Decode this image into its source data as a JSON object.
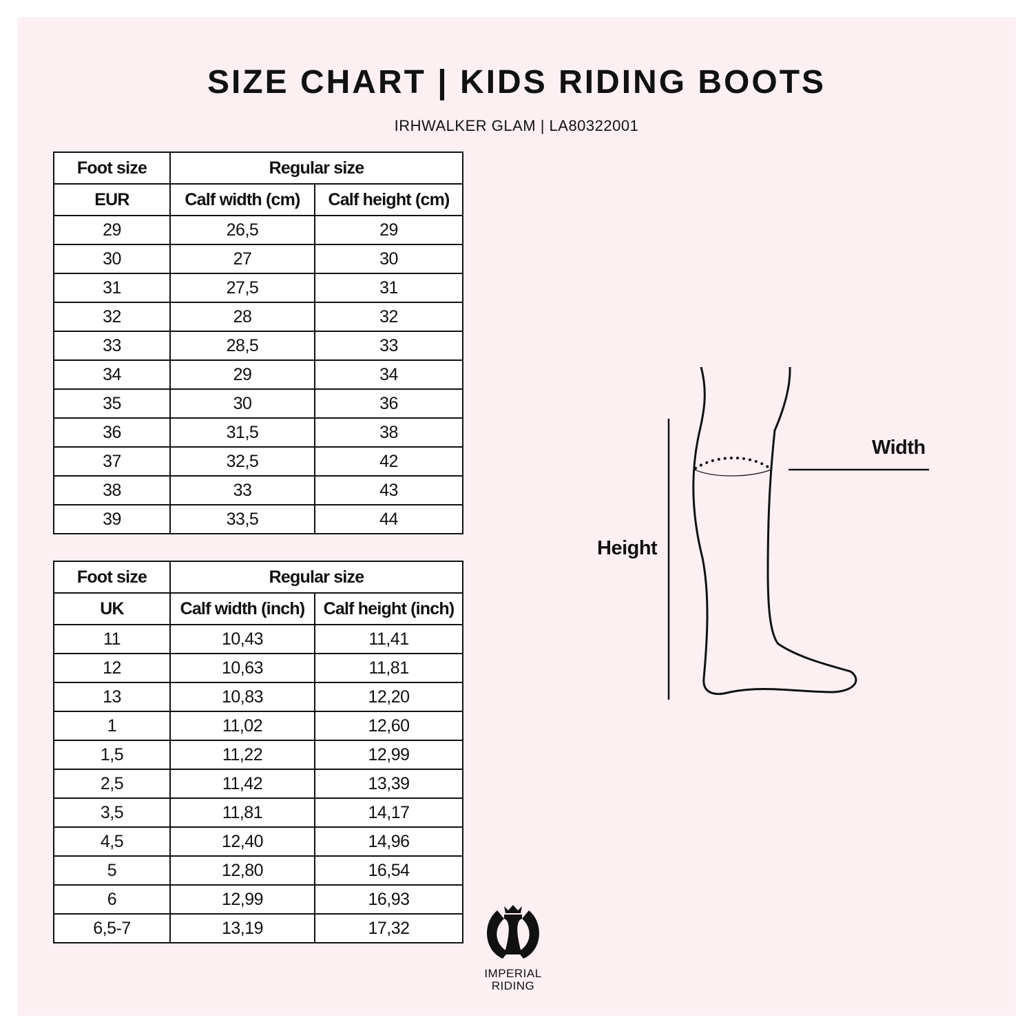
{
  "title": "SIZE CHART | KIDS RIDING BOOTS",
  "subtitle": "IRHWALKER GLAM | LA80322001",
  "table_eur": {
    "header_top": [
      "Foot size",
      "Regular size"
    ],
    "header": [
      "EUR",
      "Calf width (cm)",
      "Calf height (cm)"
    ],
    "rows": [
      [
        "29",
        "26,5",
        "29"
      ],
      [
        "30",
        "27",
        "30"
      ],
      [
        "31",
        "27,5",
        "31"
      ],
      [
        "32",
        "28",
        "32"
      ],
      [
        "33",
        "28,5",
        "33"
      ],
      [
        "34",
        "29",
        "34"
      ],
      [
        "35",
        "30",
        "36"
      ],
      [
        "36",
        "31,5",
        "38"
      ],
      [
        "37",
        "32,5",
        "42"
      ],
      [
        "38",
        "33",
        "43"
      ],
      [
        "39",
        "33,5",
        "44"
      ]
    ]
  },
  "table_uk": {
    "header_top": [
      "Foot size",
      "Regular size"
    ],
    "header": [
      "UK",
      "Calf width (inch)",
      "Calf height (inch)"
    ],
    "rows": [
      [
        "11",
        "10,43",
        "11,41"
      ],
      [
        "12",
        "10,63",
        "11,81"
      ],
      [
        "13",
        "10,83",
        "12,20"
      ],
      [
        "1",
        "11,02",
        "12,60"
      ],
      [
        "1,5",
        "11,22",
        "12,99"
      ],
      [
        "2,5",
        "11,42",
        "13,39"
      ],
      [
        "3,5",
        "11,81",
        "14,17"
      ],
      [
        "4,5",
        "12,40",
        "14,96"
      ],
      [
        "5",
        "12,80",
        "16,54"
      ],
      [
        "6",
        "12,99",
        "16,93"
      ],
      [
        "6,5-7",
        "13,19",
        "17,32"
      ]
    ]
  },
  "diagram": {
    "width_label": "Width",
    "height_label": "Height"
  },
  "logo": {
    "line1": "IMPERIAL",
    "line2": "RIDING"
  },
  "colors": {
    "background": "#fdf0f3",
    "text": "#111111"
  }
}
